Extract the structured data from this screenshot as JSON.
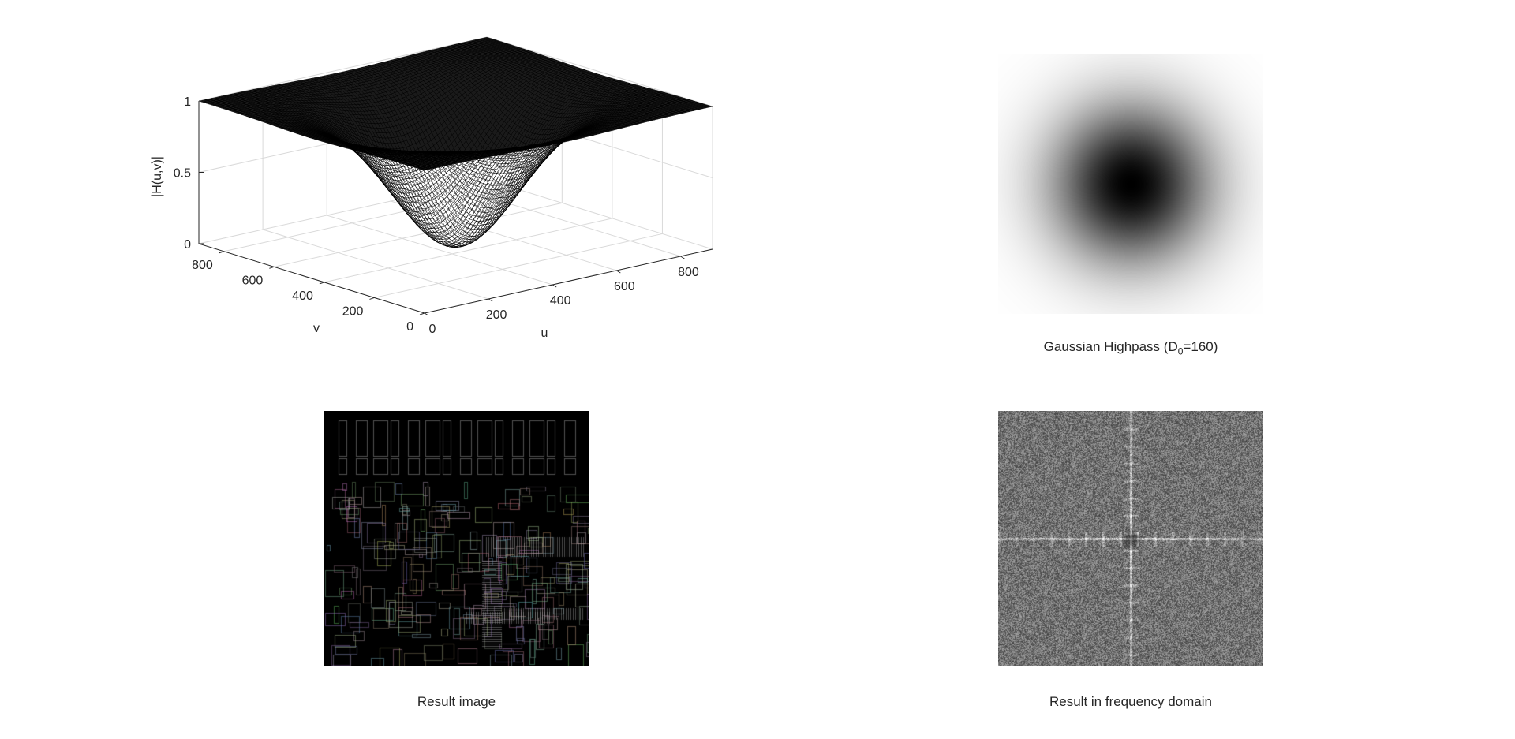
{
  "chart_data": [
    {
      "type": "surface",
      "title": "",
      "xlabel": "u",
      "ylabel": "v",
      "zlabel": "|H(u,v)|",
      "xlim": [
        0,
        900
      ],
      "ylim": [
        0,
        900
      ],
      "zlim": [
        0,
        1
      ],
      "xticks": [
        "0",
        "200",
        "400",
        "600",
        "800"
      ],
      "yticks": [
        "0",
        "200",
        "400",
        "600",
        "800"
      ],
      "zticks": [
        "0",
        "0.5",
        "1"
      ],
      "filter": {
        "kind": "gaussian_highpass",
        "D0": 160,
        "center_u": 450,
        "center_v": 450,
        "min": 0,
        "max": 1
      },
      "colors": {
        "mesh": "#000000",
        "grid": "#d9d9d9",
        "axis": "#262626"
      },
      "grid": true
    },
    {
      "type": "image",
      "title_text": "Gaussian Highpass (D",
      "title_sub": "0",
      "title_suffix": "=160)",
      "colormap": "gray",
      "description_value": {
        "min": 0,
        "max": 1
      }
    },
    {
      "type": "image",
      "title": "Result image",
      "colormap": "gray"
    },
    {
      "type": "image",
      "title": "Result in frequency domain",
      "colormap": "gray"
    }
  ]
}
